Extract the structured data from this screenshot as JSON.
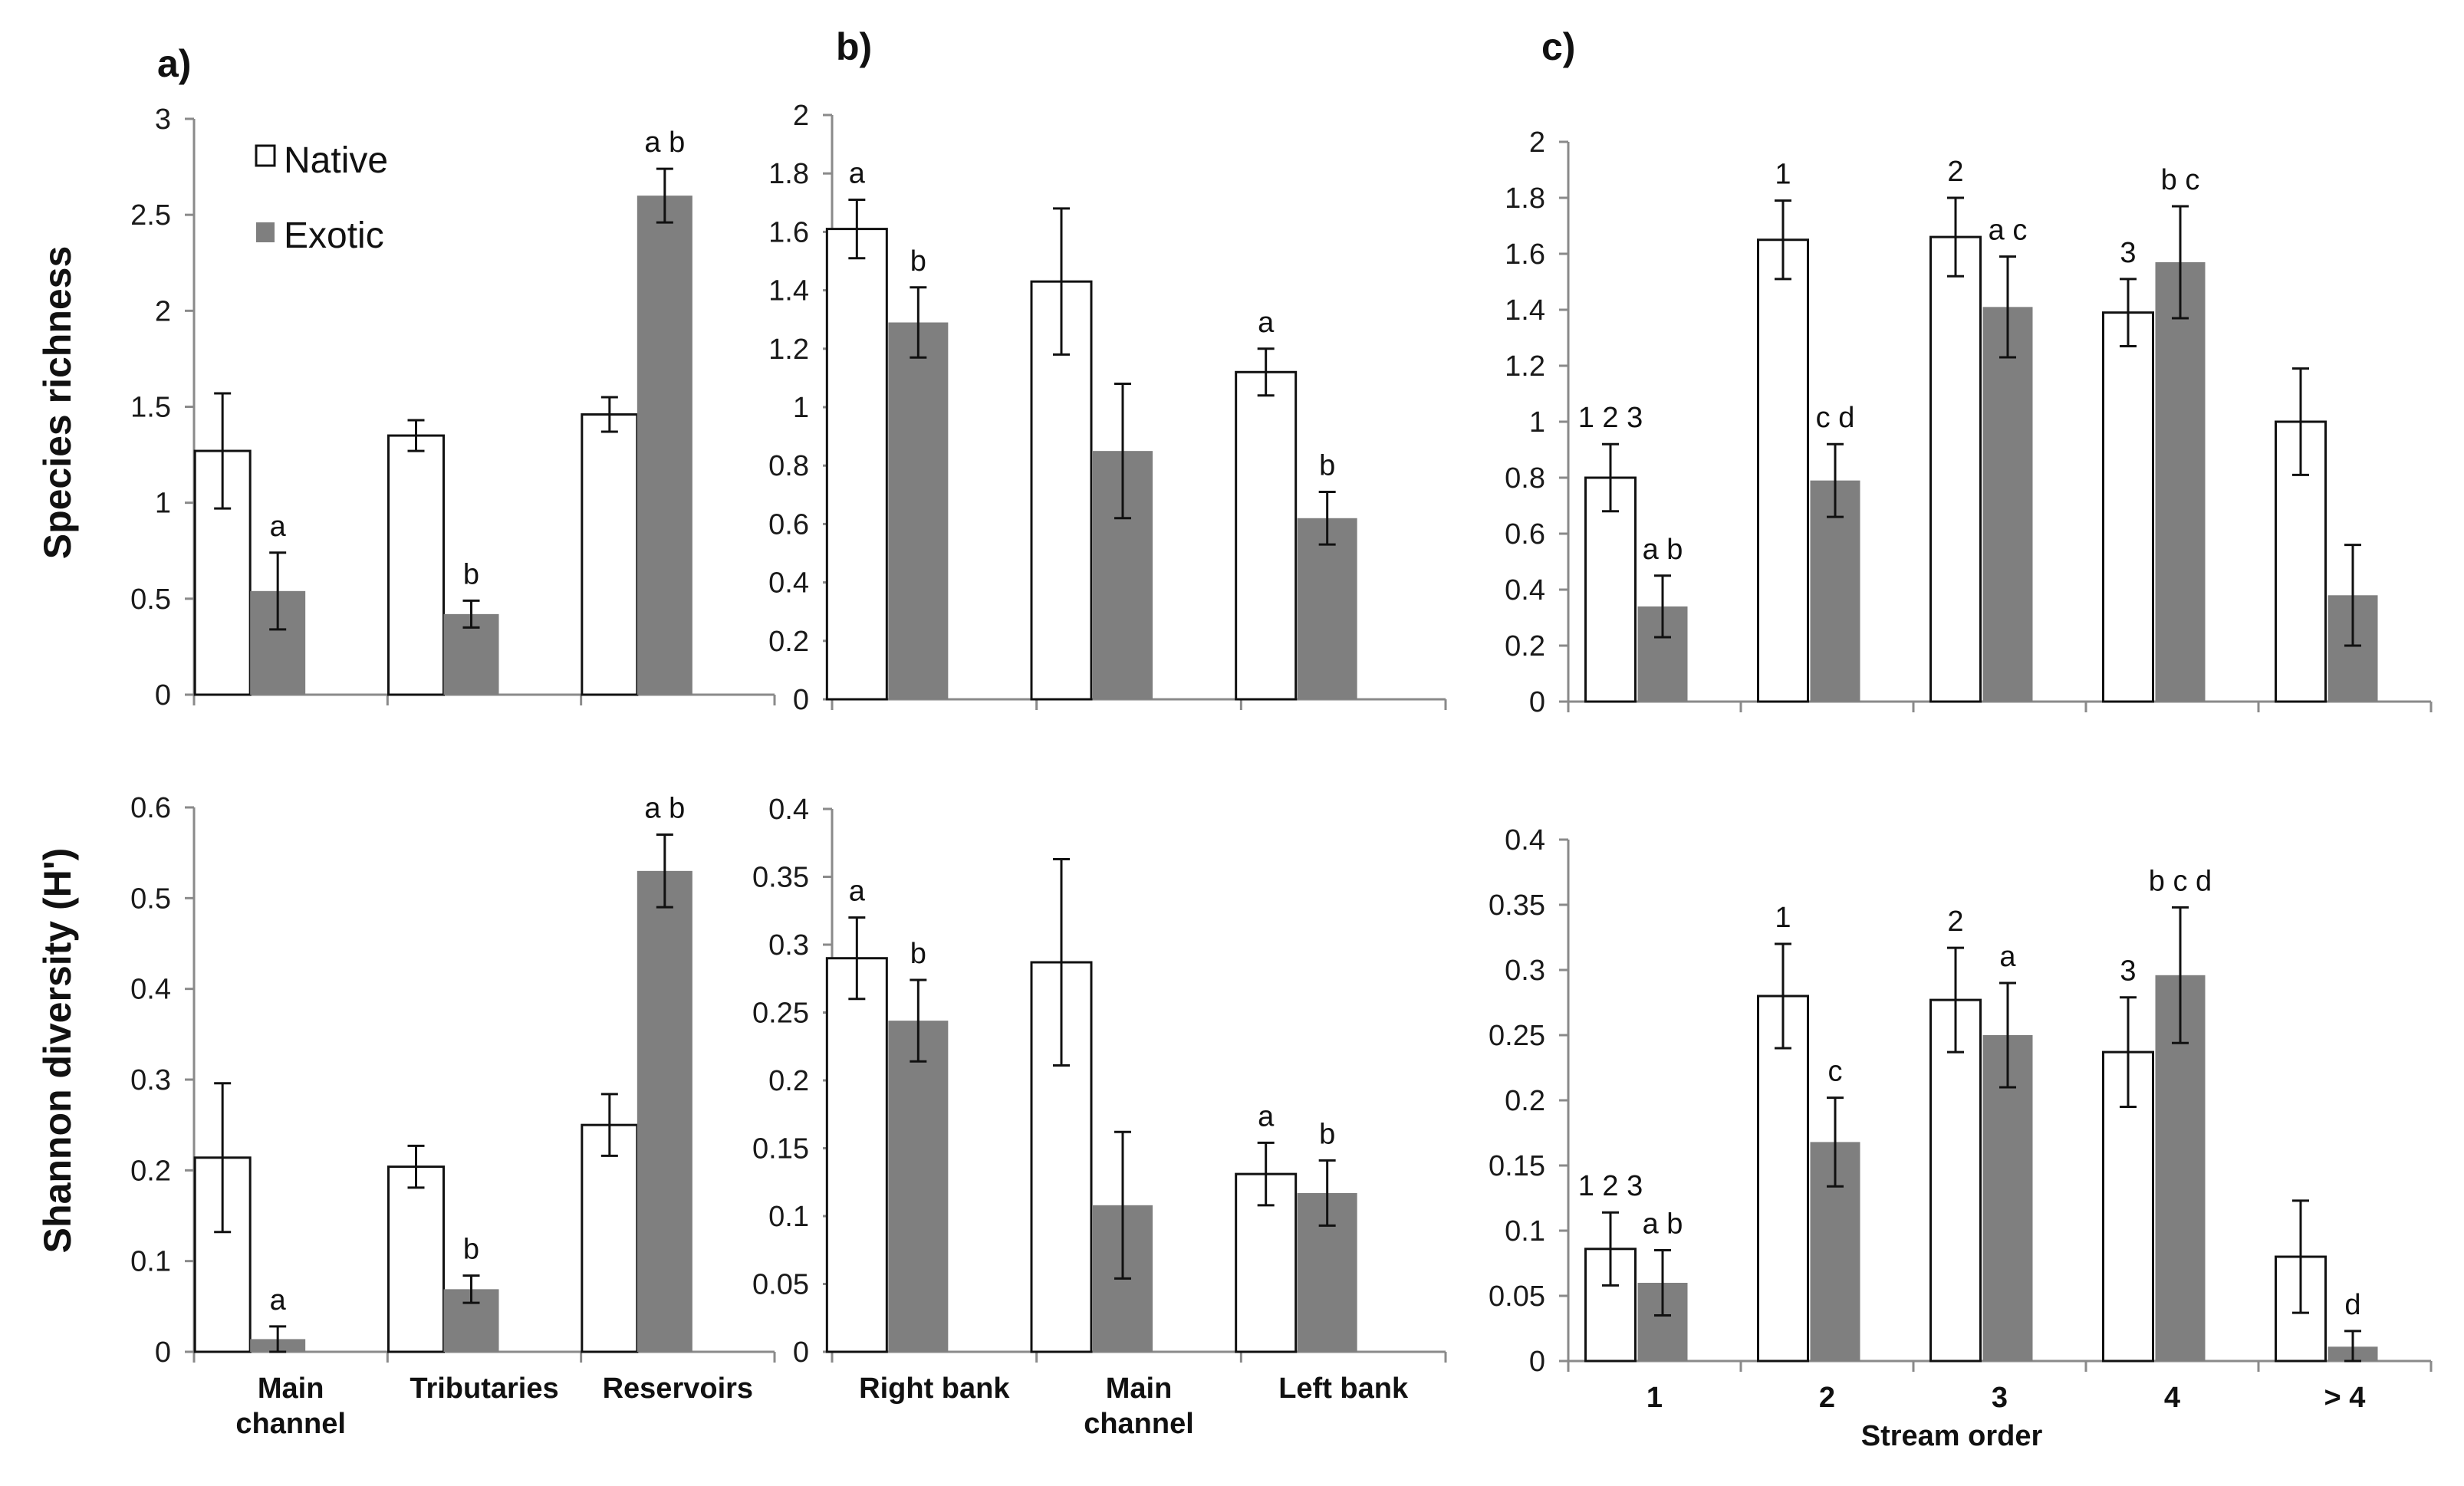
{
  "colors": {
    "native": "#ffffff",
    "exotic": "#7f7f7f",
    "axis": "#8a8a8a",
    "text": "#111111"
  },
  "legend": {
    "native": "Native",
    "exotic": "Exotic"
  },
  "panels": {
    "a": "a)",
    "b": "b)",
    "c": "c)"
  },
  "ylabels": {
    "richness": "Species  richness",
    "shannon": "Shannon diversity (H')"
  },
  "xlabel_c": "Stream order",
  "chart_data": [
    {
      "id": "a-top",
      "type": "bar",
      "panel": "a)",
      "ylabel": "Species  richness",
      "ylim": [
        0,
        3
      ],
      "yticks": [
        0,
        0.5,
        1,
        1.5,
        2,
        2.5,
        3
      ],
      "categories": [
        "Main channel",
        "Tributaries",
        "Reservoirs"
      ],
      "series": [
        {
          "name": "Native",
          "values": [
            1.27,
            1.35,
            1.46
          ],
          "errors": [
            0.3,
            0.08,
            0.09
          ],
          "labels": [
            "",
            "",
            ""
          ]
        },
        {
          "name": "Exotic",
          "values": [
            0.54,
            0.42,
            2.6
          ],
          "errors": [
            0.2,
            0.07,
            0.14
          ],
          "labels": [
            "a",
            "b",
            "a b"
          ]
        }
      ]
    },
    {
      "id": "b-top",
      "type": "bar",
      "panel": "b)",
      "ylabel": "",
      "ylim": [
        0,
        2
      ],
      "yticks": [
        0,
        0.2,
        0.4,
        0.6,
        0.8,
        1,
        1.2,
        1.4,
        1.6,
        1.8,
        2
      ],
      "categories": [
        "Right bank",
        "Main channel",
        "Left bank"
      ],
      "series": [
        {
          "name": "Native",
          "values": [
            1.61,
            1.43,
            1.12
          ],
          "errors": [
            0.1,
            0.25,
            0.08
          ],
          "labels": [
            "a",
            "",
            "a"
          ]
        },
        {
          "name": "Exotic",
          "values": [
            1.29,
            0.85,
            0.62
          ],
          "errors": [
            0.12,
            0.23,
            0.09
          ],
          "labels": [
            "b",
            "",
            "b"
          ]
        }
      ]
    },
    {
      "id": "c-top",
      "type": "bar",
      "panel": "c)",
      "ylabel": "",
      "ylim": [
        0,
        2
      ],
      "yticks": [
        0,
        0.2,
        0.4,
        0.6,
        0.8,
        1,
        1.2,
        1.4,
        1.6,
        1.8,
        2
      ],
      "categories": [
        "1",
        "2",
        "3",
        "4",
        "> 4"
      ],
      "series": [
        {
          "name": "Native",
          "values": [
            0.8,
            1.65,
            1.66,
            1.39,
            1.0
          ],
          "errors": [
            0.12,
            0.14,
            0.14,
            0.12,
            0.19
          ],
          "labels": [
            "1 2 3",
            "1",
            "2",
            "3",
            ""
          ]
        },
        {
          "name": "Exotic",
          "values": [
            0.34,
            0.79,
            1.41,
            1.57,
            0.38
          ],
          "errors": [
            0.11,
            0.13,
            0.18,
            0.2,
            0.18
          ],
          "labels": [
            "a b",
            "c d",
            "a c",
            "b c",
            ""
          ]
        }
      ]
    },
    {
      "id": "a-bottom",
      "type": "bar",
      "panel": "",
      "ylabel": "Shannon diversity (H')",
      "ylim": [
        0,
        0.6
      ],
      "yticks": [
        0,
        0.1,
        0.2,
        0.3,
        0.4,
        0.5,
        0.6
      ],
      "categories": [
        "Main channel",
        "Tributaries",
        "Reservoirs"
      ],
      "series": [
        {
          "name": "Native",
          "values": [
            0.214,
            0.204,
            0.25
          ],
          "errors": [
            0.082,
            0.023,
            0.034
          ],
          "labels": [
            "",
            "",
            ""
          ]
        },
        {
          "name": "Exotic",
          "values": [
            0.014,
            0.069,
            0.53
          ],
          "errors": [
            0.014,
            0.015,
            0.04
          ],
          "labels": [
            "a",
            "b",
            "a b"
          ]
        }
      ]
    },
    {
      "id": "b-bottom",
      "type": "bar",
      "panel": "",
      "ylabel": "",
      "ylim": [
        0,
        0.4
      ],
      "yticks": [
        0,
        0.05,
        0.1,
        0.15,
        0.2,
        0.25,
        0.3,
        0.35,
        0.4
      ],
      "categories": [
        "Right bank",
        "Main channel",
        "Left bank"
      ],
      "series": [
        {
          "name": "Native",
          "values": [
            0.29,
            0.287,
            0.131
          ],
          "errors": [
            0.03,
            0.076,
            0.023
          ],
          "labels": [
            "a",
            "",
            "a"
          ]
        },
        {
          "name": "Exotic",
          "values": [
            0.244,
            0.108,
            0.117
          ],
          "errors": [
            0.03,
            0.054,
            0.024
          ],
          "labels": [
            "b",
            "",
            "b"
          ]
        }
      ]
    },
    {
      "id": "c-bottom",
      "type": "bar",
      "panel": "",
      "ylabel": "",
      "xlabel": "Stream order",
      "ylim": [
        0,
        0.4
      ],
      "yticks": [
        0,
        0.05,
        0.1,
        0.15,
        0.2,
        0.25,
        0.3,
        0.35,
        0.4
      ],
      "categories": [
        "1",
        "2",
        "3",
        "4",
        "> 4"
      ],
      "series": [
        {
          "name": "Native",
          "values": [
            0.086,
            0.28,
            0.277,
            0.237,
            0.08
          ],
          "errors": [
            0.028,
            0.04,
            0.04,
            0.042,
            0.043
          ],
          "labels": [
            "1 2 3",
            "1",
            "2",
            "3",
            ""
          ]
        },
        {
          "name": "Exotic",
          "values": [
            0.06,
            0.168,
            0.25,
            0.296,
            0.011
          ],
          "errors": [
            0.025,
            0.034,
            0.04,
            0.052,
            0.012
          ],
          "labels": [
            "a b",
            "c",
            "a",
            "b c d",
            "d"
          ]
        }
      ]
    }
  ]
}
